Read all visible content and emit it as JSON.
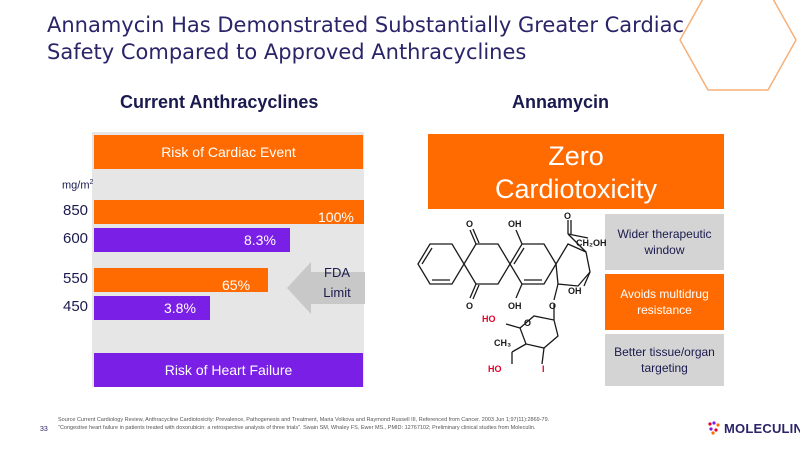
{
  "title": {
    "line1": "Annamycin Has Demonstrated Substantially Greater Cardiac",
    "line2": "Safety Compared to Approved Anthracyclines"
  },
  "left_heading": "Current Anthracyclines",
  "right_heading": "Annamycin",
  "left_panel": {
    "cardiac_event_label": "Risk of Cardiac Event",
    "heart_failure_label": "Risk of Heart Failure",
    "unit_base": "mg/m",
    "unit_exp": "2",
    "fda_line1": "FDA",
    "fda_line2": "Limit"
  },
  "chart_data": {
    "type": "bar",
    "orientation": "horizontal",
    "unit": "mg/m2",
    "categories": [
      "850",
      "600",
      "550",
      "450"
    ],
    "values": [
      100,
      8.3,
      65,
      3.8
    ],
    "value_labels": [
      "100%",
      "8.3%",
      "65%",
      "3.8%"
    ],
    "series_colors": [
      "#ff6b00",
      "#7a1fe6",
      "#ff6b00",
      "#7a1fe6"
    ],
    "groups": [
      "Risk of Cardiac Event",
      "Risk of Heart Failure"
    ],
    "xlim": [
      0,
      100
    ],
    "annotation": "FDA Limit"
  },
  "right_panel": {
    "zero_line1": "Zero",
    "zero_line2": "Cardiotoxicity",
    "benefits": [
      "Wider therapeutic window",
      "Avoids multidrug resistance",
      "Better tissue/organ targeting"
    ]
  },
  "molecule_labels": {
    "o_top_left": "O",
    "oh_top": "OH",
    "o_top_right": "O",
    "ch2oh": "CH₂OH",
    "oh_right": "OH",
    "o_bottom_left": "O",
    "oh_bottom": "OH",
    "o_bottom_right": "O",
    "ho_sugar": "HO",
    "o_ring": "O",
    "ch3": "CH₃",
    "ho_bottom": "HO",
    "iodine": "I"
  },
  "footer": {
    "source_line1": "Source Current Cardiology Review, Anthracycline Cardiotoxicity: Prevalence, Pathogenesis and Treatment,  Maria Volkova and Raymond Russell III, Referenced from Cancer. 2003 Jun 1;97(11):2869-79.",
    "source_line2": "\"Congestive heart failure in patients treated with doxorubicin: a retrospective analysis of three trials\". Swain SM, Whaley FS, Ewer MS., PMID: 12767102; Preliminary clinical studies from Moleculin.",
    "page_number": "33",
    "logo_text": "MOLECULIN"
  },
  "colors": {
    "orange": "#ff6b00",
    "purple": "#7a1fe6",
    "navy": "#2a2469",
    "grey": "#e6e6e6"
  }
}
